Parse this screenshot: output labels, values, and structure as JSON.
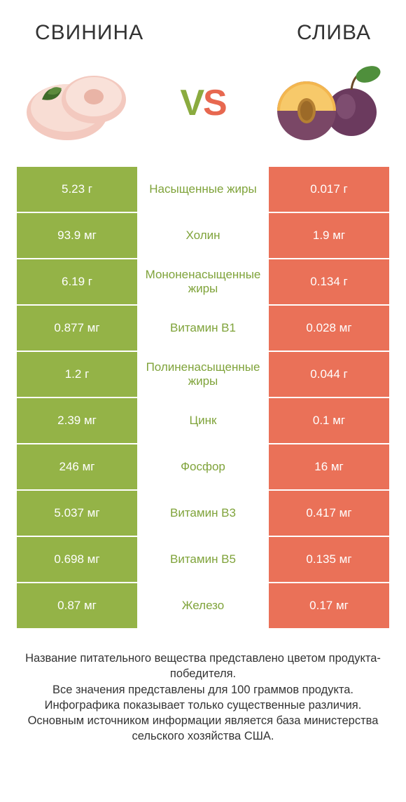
{
  "colors": {
    "green": "#94b347",
    "orange": "#ea7158",
    "green_text": "#7fa33a",
    "orange_text": "#e36b52",
    "title_text": "#333333"
  },
  "left_title": "СВИНИНА",
  "right_title": "СЛИВА",
  "vs_v": "V",
  "vs_s": "S",
  "rows": [
    {
      "left": "5.23 г",
      "label": "Насыщенные жиры",
      "right": "0.017 г",
      "winner": "left"
    },
    {
      "left": "93.9 мг",
      "label": "Холин",
      "right": "1.9 мг",
      "winner": "left"
    },
    {
      "left": "6.19 г",
      "label": "Мононенасыщенные жиры",
      "right": "0.134 г",
      "winner": "left"
    },
    {
      "left": "0.877 мг",
      "label": "Витамин B1",
      "right": "0.028 мг",
      "winner": "left"
    },
    {
      "left": "1.2 г",
      "label": "Полиненасыщенные жиры",
      "right": "0.044 г",
      "winner": "left"
    },
    {
      "left": "2.39 мг",
      "label": "Цинк",
      "right": "0.1 мг",
      "winner": "left"
    },
    {
      "left": "246 мг",
      "label": "Фосфор",
      "right": "16 мг",
      "winner": "left"
    },
    {
      "left": "5.037 мг",
      "label": "Витамин B3",
      "right": "0.417 мг",
      "winner": "left"
    },
    {
      "left": "0.698 мг",
      "label": "Витамин B5",
      "right": "0.135 мг",
      "winner": "left"
    },
    {
      "left": "0.87 мг",
      "label": "Железо",
      "right": "0.17 мг",
      "winner": "left"
    }
  ],
  "footnote_lines": [
    "Название питательного вещества представлено цветом продукта-победителя.",
    "Все значения представлены для 100 граммов продукта.",
    "Инфографика показывает только существенные различия.",
    "Основным источником информации является база министерства сельского хозяйства США."
  ]
}
